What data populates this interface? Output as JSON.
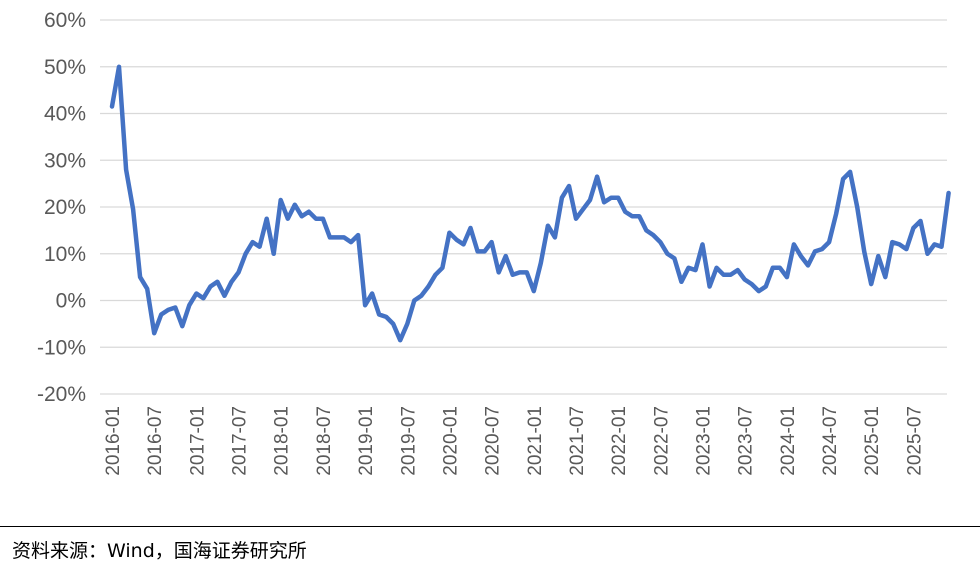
{
  "chart_data": {
    "type": "line",
    "title": "",
    "xlabel": "",
    "ylabel": "",
    "ylim": [
      -20,
      60
    ],
    "y_ticks": [
      60,
      50,
      40,
      30,
      20,
      10,
      0,
      -10,
      -20
    ],
    "y_tick_labels": [
      "60%",
      "50%",
      "40%",
      "30%",
      "20%",
      "10%",
      "0%",
      "-10%",
      "-20%"
    ],
    "x_tick_labels": [
      "2016-01",
      "2016-07",
      "2017-01",
      "2017-07",
      "2018-01",
      "2018-07",
      "2019-01",
      "2019-07",
      "2020-01",
      "2020-07",
      "2021-01",
      "2021-07",
      "2022-01",
      "2022-07",
      "2023-01",
      "2023-07",
      "2024-01",
      "2024-07",
      "2025-01",
      "2025-07"
    ],
    "x_start": "2016-01",
    "grid": true,
    "legend": "none",
    "colors": {
      "series": "#4472c4",
      "grid": "#d9d9d9",
      "text": "#595959"
    },
    "series": [
      {
        "values": [
          41.5,
          50,
          28,
          19.5,
          5,
          2.5,
          -7,
          -3,
          -2,
          -1.5,
          -5.5,
          -1,
          1.5,
          0.5,
          3,
          4,
          1,
          4,
          6,
          10,
          12.5,
          11.5,
          17.5,
          10,
          21.5,
          17.5,
          20.5,
          18,
          19,
          17.5,
          17.5,
          13.5,
          13.5,
          13.5,
          12.5,
          14,
          -1,
          1.5,
          -3,
          -3.5,
          -5,
          -8.5,
          -5,
          0,
          1,
          3,
          5.5,
          7,
          14.5,
          13,
          12,
          15.5,
          10.5,
          10.5,
          12.5,
          6,
          9.5,
          5.5,
          6,
          6,
          2,
          8,
          16,
          13.5,
          22,
          24.5,
          17.5,
          19.5,
          21.5,
          26.5,
          21,
          22,
          22,
          19,
          18,
          18,
          15,
          14,
          12.5,
          10,
          9,
          4,
          7,
          6.5,
          12,
          3,
          7,
          5.5,
          5.5,
          6.5,
          4.5,
          3.5,
          2,
          3,
          7,
          7,
          5,
          12,
          9.5,
          7.5,
          10.5,
          11,
          12.5,
          18.5,
          26,
          27.5,
          20,
          10.5,
          3.5,
          9.5,
          5,
          12.5,
          12,
          11,
          15.5,
          17,
          10,
          12,
          11.5,
          23
        ]
      }
    ]
  },
  "source": {
    "text": "资料来源：Wind，国海证券研究所"
  }
}
